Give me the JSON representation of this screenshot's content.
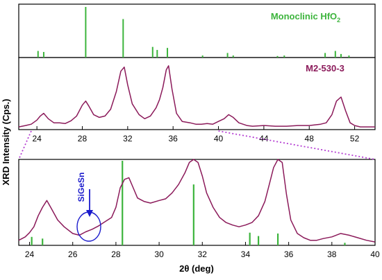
{
  "figure": {
    "ylabel": "XRD Intensity (Cps.)",
    "xlabel": "2θ (deg)",
    "label_color": "#000000",
    "sample_color": "#8b1a5a",
    "reference_color": "#3cb43c",
    "annotation_color": "#1a1acc",
    "zoom_line_color": "#b43cd2"
  },
  "chart_data": [
    {
      "id": "reference",
      "type": "bar",
      "title": "",
      "legend": {
        "text_main": "Monoclinic HfO",
        "text_sub": "2",
        "placement": "top-right"
      },
      "xlim": [
        22.4,
        53.8
      ],
      "ylim": [
        0,
        100
      ],
      "ticks": [],
      "bars": [
        {
          "x": 24.1,
          "y": 13
        },
        {
          "x": 24.6,
          "y": 11
        },
        {
          "x": 28.3,
          "y": 100
        },
        {
          "x": 31.6,
          "y": 76
        },
        {
          "x": 34.2,
          "y": 21
        },
        {
          "x": 34.6,
          "y": 15
        },
        {
          "x": 35.5,
          "y": 19
        },
        {
          "x": 38.6,
          "y": 4
        },
        {
          "x": 40.8,
          "y": 9
        },
        {
          "x": 41.3,
          "y": 4
        },
        {
          "x": 45.2,
          "y": 3
        },
        {
          "x": 45.8,
          "y": 4
        },
        {
          "x": 49.4,
          "y": 9
        },
        {
          "x": 50.3,
          "y": 13
        },
        {
          "x": 50.8,
          "y": 7
        },
        {
          "x": 51.5,
          "y": 4
        }
      ]
    },
    {
      "id": "full-scan",
      "type": "line",
      "title": "",
      "legend": {
        "text": "M2-530-3",
        "placement": "top-right"
      },
      "xlim": [
        22.4,
        53.8
      ],
      "ylim": [
        0,
        100
      ],
      "ticks": [
        24,
        28,
        32,
        36,
        40,
        44,
        48,
        52
      ],
      "series": [
        {
          "x": [
            22.4,
            23.0,
            23.5,
            24.0,
            24.3,
            24.6,
            25.0,
            25.5,
            26.0,
            26.5,
            27.0,
            27.5,
            28.0,
            28.3,
            28.6,
            29.0,
            29.5,
            30.0,
            30.5,
            31.0,
            31.4,
            31.7,
            32.0,
            32.4,
            33.0,
            33.5,
            34.0,
            34.5,
            34.8,
            35.1,
            35.4,
            35.6,
            35.9,
            36.3,
            36.8,
            37.5,
            38.0,
            38.5,
            39.0,
            39.5,
            40.0,
            40.5,
            40.9,
            41.3,
            41.8,
            42.5,
            43.0,
            44.0,
            45.0,
            46.0,
            47.0,
            48.0,
            49.0,
            49.5,
            50.0,
            50.4,
            50.8,
            51.2,
            51.6,
            52.0,
            52.5,
            53.0,
            53.8
          ],
          "y": [
            4,
            6,
            8,
            14,
            20,
            24,
            16,
            10,
            10,
            9,
            13,
            20,
            36,
            42,
            34,
            22,
            18,
            20,
            30,
            56,
            86,
            92,
            66,
            38,
            22,
            16,
            20,
            32,
            44,
            62,
            88,
            94,
            60,
            24,
            12,
            10,
            8,
            8,
            9,
            8,
            12,
            16,
            22,
            18,
            10,
            6,
            5,
            6,
            5,
            5,
            6,
            6,
            8,
            10,
            22,
            42,
            48,
            28,
            10,
            6,
            4,
            4,
            4
          ]
        }
      ]
    },
    {
      "id": "zoom",
      "type": "line",
      "title": "",
      "xlim": [
        23.5,
        40
      ],
      "ylim": [
        0,
        100
      ],
      "ticks": [
        24,
        26,
        28,
        30,
        32,
        34,
        36,
        38,
        40
      ],
      "annotation": {
        "text": "SiGeSn",
        "x": 26.8
      },
      "reference_bars": [
        {
          "x": 24.1,
          "y": 10
        },
        {
          "x": 24.6,
          "y": 8
        },
        {
          "x": 28.3,
          "y": 100
        },
        {
          "x": 31.6,
          "y": 72
        },
        {
          "x": 34.2,
          "y": 15
        },
        {
          "x": 34.6,
          "y": 11
        },
        {
          "x": 35.5,
          "y": 14
        },
        {
          "x": 38.6,
          "y": 3
        }
      ],
      "series": [
        {
          "x": [
            23.5,
            23.8,
            24.0,
            24.2,
            24.4,
            24.6,
            24.8,
            25.0,
            25.3,
            25.6,
            26.0,
            26.3,
            26.6,
            26.9,
            27.2,
            27.5,
            27.8,
            28.0,
            28.2,
            28.4,
            28.6,
            28.8,
            29.0,
            29.3,
            29.6,
            30.0,
            30.3,
            30.6,
            30.9,
            31.2,
            31.4,
            31.6,
            31.8,
            32.0,
            32.2,
            32.5,
            32.8,
            33.1,
            33.4,
            33.7,
            34.0,
            34.3,
            34.6,
            34.9,
            35.1,
            35.3,
            35.5,
            35.7,
            35.9,
            36.1,
            36.4,
            36.7,
            37.0,
            37.3,
            37.6,
            38.0,
            38.4,
            38.8,
            39.2,
            39.6,
            40.0
          ],
          "y": [
            6,
            10,
            15,
            22,
            35,
            45,
            53,
            44,
            30,
            22,
            14,
            12,
            16,
            19,
            23,
            28,
            33,
            45,
            68,
            78,
            80,
            68,
            56,
            52,
            50,
            53,
            55,
            62,
            72,
            86,
            98,
            104,
            98,
            82,
            62,
            45,
            33,
            27,
            24,
            22,
            24,
            27,
            35,
            52,
            72,
            92,
            104,
            98,
            60,
            30,
            14,
            9,
            6,
            6,
            8,
            10,
            14,
            12,
            9,
            6,
            4
          ]
        }
      ]
    }
  ]
}
